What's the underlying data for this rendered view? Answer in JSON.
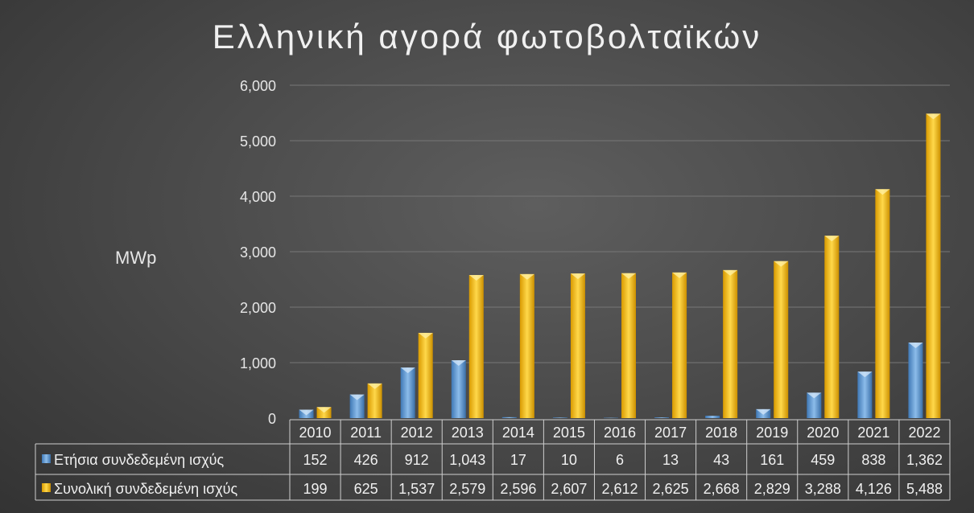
{
  "chart_data": {
    "type": "bar",
    "title": "Ελληνική αγορά φωτοβολταϊκών",
    "ylabel": "MWp",
    "xlabel": "",
    "ylim": [
      0,
      6000
    ],
    "yticks": [
      "0",
      "1,000",
      "2,000",
      "3,000",
      "4,000",
      "5,000",
      "6,000"
    ],
    "grid": true,
    "legend": "data-table-left",
    "categories": [
      "2010",
      "2011",
      "2012",
      "2013",
      "2014",
      "2015",
      "2016",
      "2017",
      "2018",
      "2019",
      "2020",
      "2021",
      "2022"
    ],
    "series": [
      {
        "name": "Ετήσια συνδεδεμένη ισχύς",
        "color": "#5b9bd5",
        "values": [
          152,
          426,
          912,
          1043,
          17,
          10,
          6,
          13,
          43,
          161,
          459,
          838,
          1362
        ],
        "labels": [
          "152",
          "426",
          "912",
          "1,043",
          "17",
          "10",
          "6",
          "13",
          "43",
          "161",
          "459",
          "838",
          "1,362"
        ]
      },
      {
        "name": "Συνολική συνδεδεμένη ισχύς",
        "color": "#ffc000",
        "values": [
          199,
          625,
          1537,
          2579,
          2596,
          2607,
          2612,
          2625,
          2668,
          2829,
          3288,
          4126,
          5488
        ],
        "labels": [
          "199",
          "625",
          "1,537",
          "2,579",
          "2,596",
          "2,607",
          "2,612",
          "2,625",
          "2,668",
          "2,829",
          "3,288",
          "4,126",
          "5,488"
        ]
      }
    ]
  }
}
